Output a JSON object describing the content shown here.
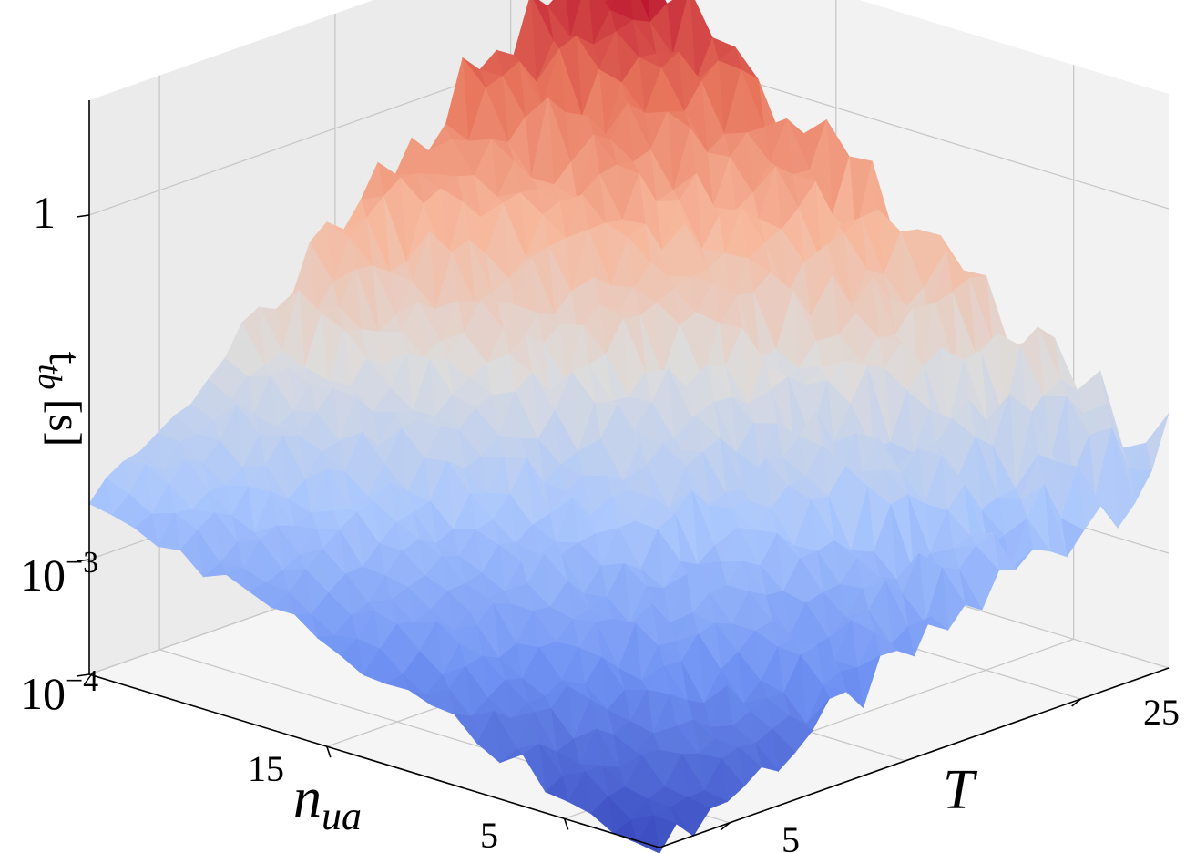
{
  "chart_data": {
    "type": "surface3d",
    "colormap": "coolwarm",
    "colormap_stops": [
      "#3b4cc0",
      "#6f92f3",
      "#aac7fd",
      "#dddcdc",
      "#f7b89c",
      "#e7745b",
      "#b40426"
    ],
    "x_axis": {
      "variable": "T",
      "label_main": "T",
      "label_sub": "",
      "range": [
        1,
        30
      ],
      "ticks": [
        5,
        25
      ],
      "tick_labels": [
        "5",
        "25"
      ]
    },
    "y_axis": {
      "variable": "n_ua",
      "label_main": "n",
      "label_sub": "ua",
      "range": [
        1,
        25
      ],
      "ticks": [
        5,
        15
      ],
      "tick_labels": [
        "5",
        "15"
      ]
    },
    "z_axis": {
      "scale": "log",
      "label": "t_tb [s]",
      "label_main": "t",
      "label_sub": "tb",
      "label_unit": "[s]",
      "range": [
        0.0001,
        10
      ],
      "ticks": [
        0.0001,
        0.001,
        1
      ],
      "tick_labels": [
        {
          "base": "10",
          "exp": "−4"
        },
        {
          "base": "10",
          "exp": "−3"
        },
        {
          "base": "1",
          "exp": ""
        }
      ]
    },
    "surface": {
      "description_of_shape": "log10(t) rises with both T and n_ua; peak near T=30, n_ua=25",
      "z_min": 0.0001,
      "z_max": 6,
      "grid": {
        "T_steps": 30,
        "n_steps": 25
      }
    },
    "grid": true
  }
}
